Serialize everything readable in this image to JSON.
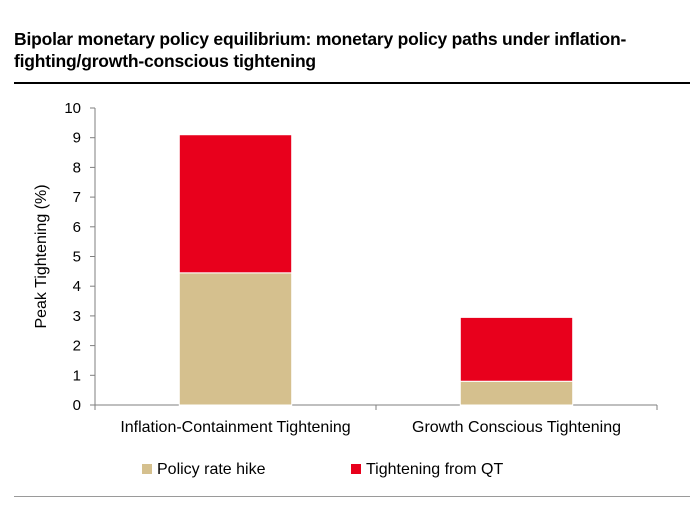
{
  "title": "Bipolar monetary policy equilibrium: monetary policy paths under inflation-fighting/growth-conscious tightening",
  "chart_data": {
    "type": "bar",
    "stacked": true,
    "categories": [
      "Inflation-Containment Tightening",
      "Growth Conscious Tightening"
    ],
    "series": [
      {
        "name": "Policy rate hike",
        "values": [
          4.45,
          0.8
        ],
        "color": "#D5C08E"
      },
      {
        "name": "Tightening from QT",
        "values": [
          4.65,
          2.15
        ],
        "color": "#E8001C"
      }
    ],
    "ylabel": "Peak Tightening (%)",
    "xlabel": "",
    "ylim": [
      0,
      10
    ],
    "yticks": [
      "0",
      "1",
      "2",
      "3",
      "4",
      "5",
      "6",
      "7",
      "8",
      "9",
      "10"
    ],
    "grid": false,
    "legend_position": "bottom"
  }
}
